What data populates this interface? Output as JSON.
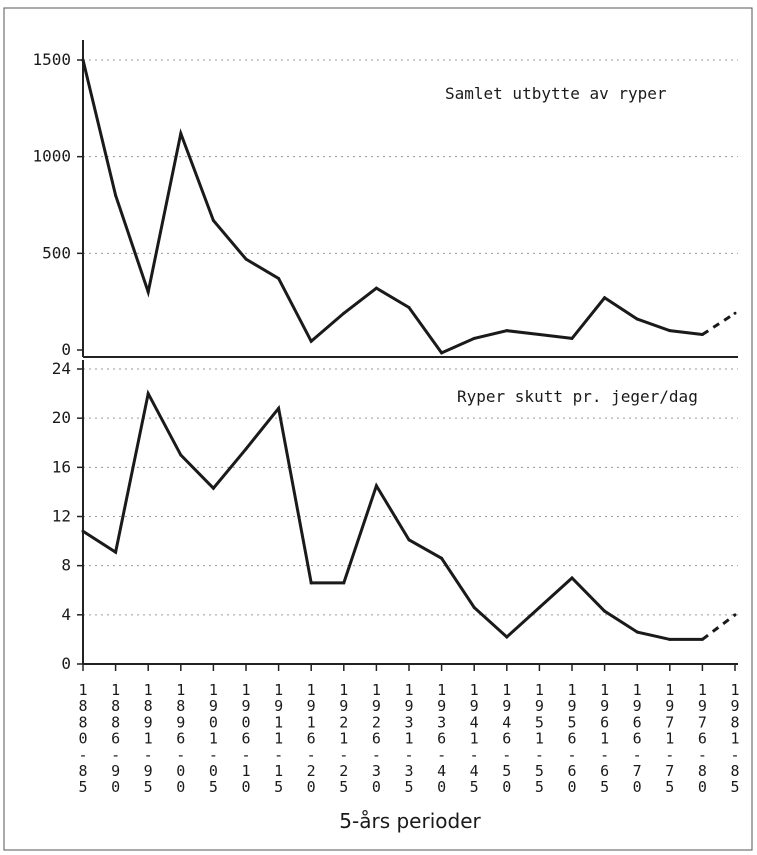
{
  "chart_data": [
    {
      "type": "line",
      "title": "Samlet utbytte av ryper",
      "xlabel": "",
      "ylabel": "",
      "ylim": [
        0,
        1500
      ],
      "yticks": [
        "1500",
        "1000",
        "500",
        "0"
      ],
      "ytick_values": [
        1500,
        1000,
        500,
        0
      ],
      "grid": true,
      "categories": [
        "1880-85",
        "1886-90",
        "1891-95",
        "1896-00",
        "1901-05",
        "1906-10",
        "1911-15",
        "1916-20",
        "1921-25",
        "1926-30",
        "1931-35",
        "1936-40",
        "1941-45",
        "1946-50",
        "1951-55",
        "1956-60",
        "1961-65",
        "1966-70",
        "1971-75",
        "1976-80",
        "1981-85"
      ],
      "series": [
        {
          "values": [
            1500,
            800,
            300,
            1120,
            670,
            470,
            370,
            45,
            190,
            320,
            220,
            -15,
            60,
            100,
            80,
            60,
            270,
            160,
            100,
            80,
            190
          ],
          "dashed_last_segment": true
        }
      ]
    },
    {
      "type": "line",
      "title": "Ryper skutt pr. jeger/dag",
      "xlabel": "5-års perioder",
      "ylabel": "",
      "ylim": [
        0,
        24
      ],
      "yticks": [
        "24",
        "20",
        "16",
        "12",
        "8",
        "4",
        "0"
      ],
      "ytick_values": [
        24,
        20,
        16,
        12,
        8,
        4,
        0
      ],
      "grid": true,
      "categories": [
        "1880-85",
        "1886-90",
        "1891-95",
        "1896-00",
        "1901-05",
        "1906-10",
        "1911-15",
        "1916-20",
        "1921-25",
        "1926-30",
        "1931-35",
        "1936-40",
        "1941-45",
        "1946-50",
        "1951-55",
        "1956-60",
        "1961-65",
        "1966-70",
        "1971-75",
        "1976-80",
        "1981-85"
      ],
      "series": [
        {
          "values": [
            10.8,
            9.1,
            22.0,
            17.0,
            14.3,
            17.5,
            20.8,
            6.6,
            6.6,
            14.5,
            10.1,
            8.6,
            4.6,
            2.2,
            4.6,
            7.0,
            4.3,
            2.6,
            2.0,
            2.0,
            4.0
          ],
          "dashed_last_segment": true
        }
      ],
      "category_labels": [
        [
          "1",
          "8",
          "8",
          "0",
          "-",
          "8",
          "5"
        ],
        [
          "1",
          "8",
          "8",
          "6",
          "-",
          "9",
          "0"
        ],
        [
          "1",
          "8",
          "9",
          "1",
          "-",
          "9",
          "5"
        ],
        [
          "1",
          "8",
          "9",
          "6",
          "-",
          "0",
          "0"
        ],
        [
          "1",
          "9",
          "0",
          "1",
          "-",
          "0",
          "5"
        ],
        [
          "1",
          "9",
          "0",
          "6",
          "-",
          "1",
          "0"
        ],
        [
          "1",
          "9",
          "1",
          "1",
          "-",
          "1",
          "5"
        ],
        [
          "1",
          "9",
          "1",
          "6",
          "-",
          "2",
          "0"
        ],
        [
          "1",
          "9",
          "2",
          "1",
          "-",
          "2",
          "5"
        ],
        [
          "1",
          "9",
          "2",
          "6",
          "-",
          "3",
          "0"
        ],
        [
          "1",
          "9",
          "3",
          "1",
          "-",
          "3",
          "5"
        ],
        [
          "1",
          "9",
          "3",
          "6",
          "-",
          "4",
          "0"
        ],
        [
          "1",
          "9",
          "4",
          "1",
          "-",
          "4",
          "5"
        ],
        [
          "1",
          "9",
          "4",
          "6",
          "-",
          "5",
          "0"
        ],
        [
          "1",
          "9",
          "5",
          "1",
          "-",
          "5",
          "5"
        ],
        [
          "1",
          "9",
          "5",
          "6",
          "-",
          "6",
          "0"
        ],
        [
          "1",
          "9",
          "6",
          "1",
          "-",
          "6",
          "5"
        ],
        [
          "1",
          "9",
          "6",
          "6",
          "-",
          "7",
          "0"
        ],
        [
          "1",
          "9",
          "7",
          "1",
          "-",
          "7",
          "5"
        ],
        [
          "1",
          "9",
          "7",
          "6",
          "-",
          "8",
          "0"
        ],
        [
          "1",
          "9",
          "8",
          "1",
          "-",
          "8",
          "5"
        ]
      ]
    }
  ]
}
